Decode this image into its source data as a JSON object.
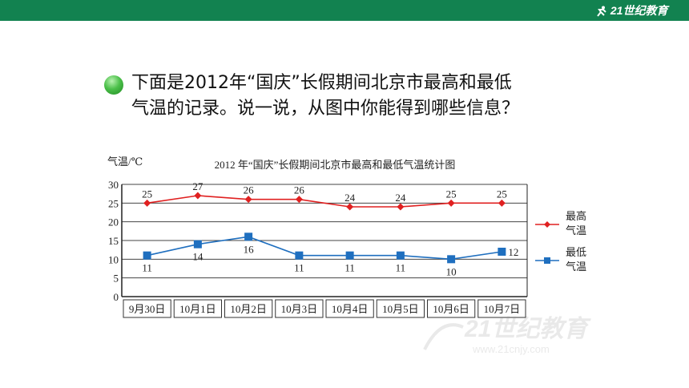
{
  "header": {
    "logo_text": "21世纪教育",
    "bar_color": "#128250"
  },
  "question": {
    "line1": "下面是2012年“国庆”长假期间北京市最高和最低",
    "line2": "气温的记录。说一说，从图中你能得到哪些信息？",
    "bullet_icon": "green-sphere-bullet-icon"
  },
  "chart_data": {
    "type": "line",
    "title": "2012 年“国庆”长假期间北京市最高和最低气温统计图",
    "ylabel": "气温/℃",
    "xlabel": "",
    "ylim": [
      0,
      30
    ],
    "yticks": [
      "0",
      "5",
      "10",
      "15",
      "20",
      "25",
      "30"
    ],
    "categories": [
      "9月30日",
      "10月1日",
      "10月2日",
      "10月3日",
      "10月4日",
      "10月5日",
      "10月6日",
      "10月7日"
    ],
    "grid": "horizontal",
    "legend": "right",
    "series": [
      {
        "name": "最高气温",
        "legend_line1": "最高",
        "legend_line2": "气温",
        "color": "#e02020",
        "marker": "diamond",
        "values": [
          25,
          27,
          26,
          26,
          24,
          24,
          25,
          25
        ],
        "label_values": [
          "25",
          "27",
          "26",
          "26",
          "24",
          "24",
          "25",
          "25"
        ]
      },
      {
        "name": "最低气温",
        "legend_line1": "最低",
        "legend_line2": "气温",
        "color": "#1f6fbf",
        "marker": "square",
        "values": [
          11,
          14,
          16,
          11,
          11,
          11,
          10,
          12
        ],
        "label_values": [
          "11",
          "14",
          "16",
          "11",
          "11",
          "11",
          "10",
          "12"
        ]
      }
    ]
  },
  "watermark": {
    "text": "21世纪教育",
    "subtext": "www.21cnjy.com"
  }
}
